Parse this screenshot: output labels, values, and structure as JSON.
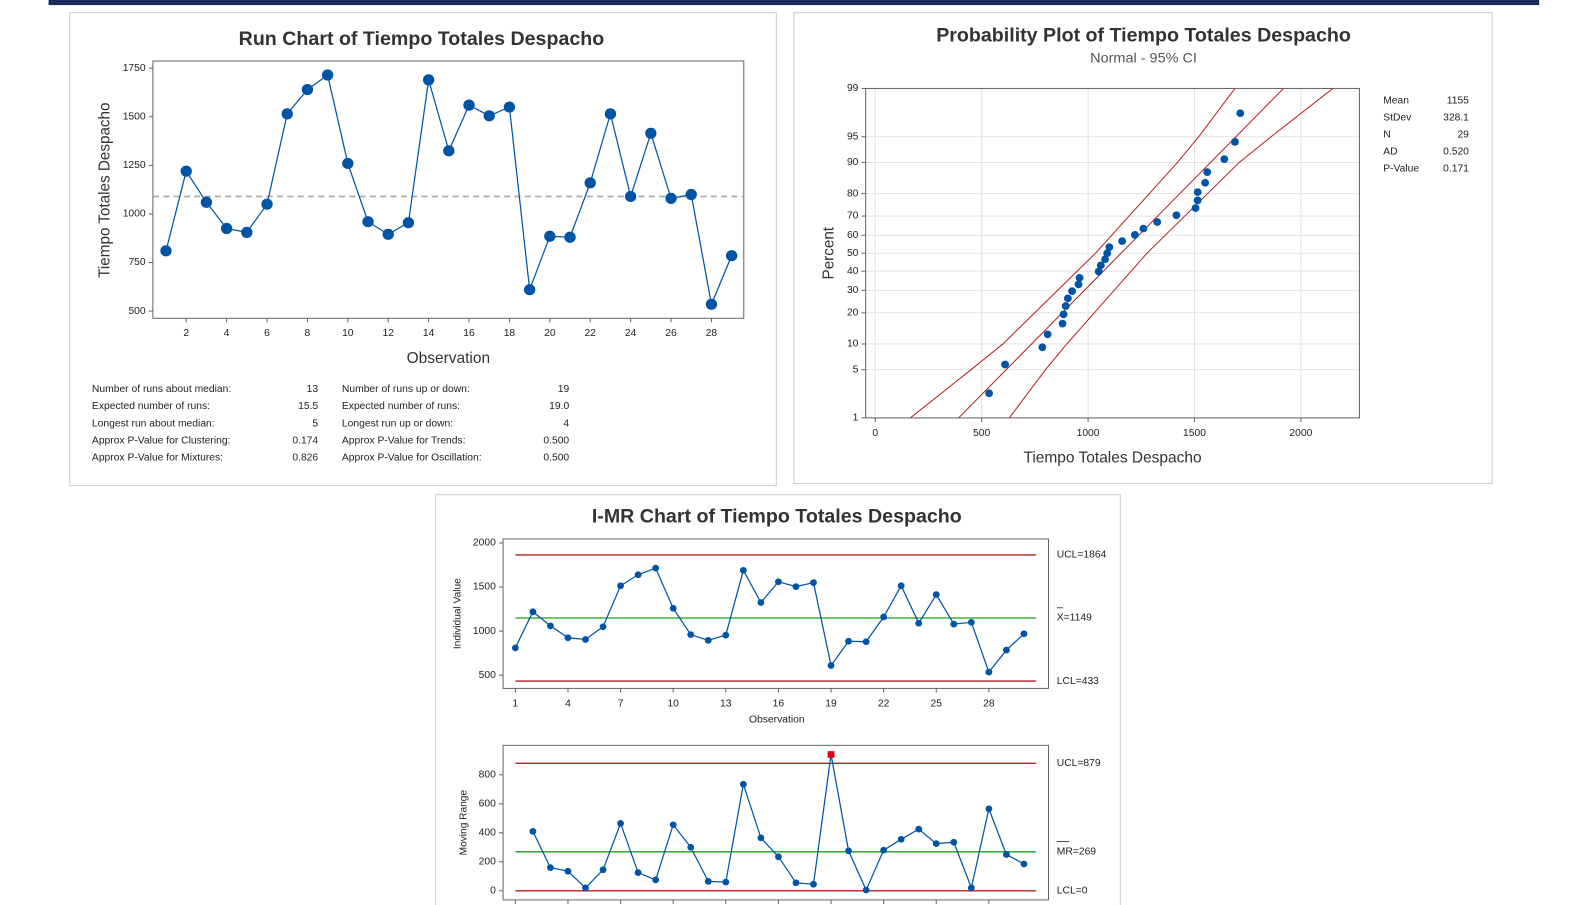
{
  "chart_data": [
    {
      "type": "run",
      "title": "Run Chart of Tiempo Totales Despacho",
      "x_label": "Observation",
      "y_label": "Tiempo Totales Despacho",
      "x": [
        1,
        2,
        3,
        4,
        5,
        6,
        7,
        8,
        9,
        10,
        11,
        12,
        13,
        14,
        15,
        16,
        17,
        18,
        19,
        20,
        21,
        22,
        23,
        24,
        25,
        26,
        27,
        28,
        29
      ],
      "values": [
        810,
        1220,
        1060,
        925,
        905,
        1050,
        1515,
        1640,
        1715,
        1260,
        960,
        895,
        955,
        1690,
        1325,
        1560,
        1505,
        1550,
        610,
        885,
        880,
        1160,
        1515,
        1090,
        1415,
        1080,
        1100,
        535,
        785
      ],
      "color": "#0054a6",
      "median": 1090,
      "xlim": [
        0.35,
        29.6
      ],
      "ylim": [
        463,
        1787
      ],
      "xticks": [
        2,
        4,
        6,
        8,
        10,
        12,
        14,
        16,
        18,
        20,
        22,
        24,
        26,
        28
      ],
      "yticks": [
        500,
        750,
        1000,
        1250,
        1500,
        1750
      ],
      "stats_left": [
        [
          "Number of runs about median:",
          "13"
        ],
        [
          "Expected number of runs:",
          "15.5"
        ],
        [
          "Longest run about median:",
          "5"
        ],
        [
          "Approx P-Value for Clustering:",
          "0.174"
        ],
        [
          "Approx P-Value for Mixtures:",
          "0.826"
        ]
      ],
      "stats_right": [
        [
          "Number of runs up or down:",
          "19"
        ],
        [
          "Expected number of runs:",
          "19.0"
        ],
        [
          "Longest run up or down:",
          "4"
        ],
        [
          "Approx P-Value for Trends:",
          "0.500"
        ],
        [
          "Approx P-Value for Oscillation:",
          "0.500"
        ]
      ]
    },
    {
      "type": "probability",
      "title": "Probability Plot of Tiempo Totales Despacho",
      "subtitle": "Normal - 95% CI",
      "x_label": "Tiempo Totales Despacho",
      "y_label": "Percent",
      "x": [
        535,
        610,
        785,
        810,
        880,
        885,
        895,
        905,
        925,
        955,
        960,
        1050,
        1060,
        1080,
        1090,
        1100,
        1160,
        1220,
        1260,
        1325,
        1415,
        1505,
        1515,
        1515,
        1550,
        1560,
        1640,
        1690,
        1715
      ],
      "values": [
        2.4,
        5.8,
        9.2,
        12.6,
        16.0,
        19.4,
        22.8,
        26.2,
        29.6,
        33.0,
        36.4,
        39.8,
        43.2,
        46.6,
        50.0,
        53.4,
        56.8,
        60.2,
        63.6,
        67.0,
        70.4,
        73.8,
        77.2,
        80.6,
        84.0,
        87.4,
        90.8,
        94.2,
        97.6
      ],
      "color": "#0054a6",
      "line_color": "#b22222",
      "grid": true,
      "ci": {
        "percents": [
          1,
          5,
          10,
          50,
          90,
          95,
          99
        ],
        "lower": [
          165,
          450,
          600,
          1035,
          1420,
          1520,
          1690
        ],
        "upper": [
          630,
          800,
          900,
          1277,
          1710,
          1860,
          2150
        ]
      },
      "xlim": [
        -45,
        2275
      ],
      "ylim": [
        1,
        99
      ],
      "xticks": [
        0,
        500,
        1000,
        1500,
        2000
      ],
      "yticks": [
        1,
        5,
        10,
        20,
        30,
        40,
        50,
        60,
        70,
        80,
        90,
        95,
        99
      ],
      "stats": [
        {
          "label": "Mean",
          "value": 1155
        },
        {
          "label": "StDev",
          "value": 328.1
        },
        {
          "label": "N",
          "value": 29
        },
        {
          "label": "AD",
          "value": "0.520"
        },
        {
          "label": "P-Value",
          "value": "0.171"
        }
      ]
    },
    {
      "type": "imr",
      "title": "I-MR Chart of Tiempo Totales Despacho",
      "x_label": "Observation",
      "x": [
        1,
        2,
        3,
        4,
        5,
        6,
        7,
        8,
        9,
        10,
        11,
        12,
        13,
        14,
        15,
        16,
        17,
        18,
        19,
        20,
        21,
        22,
        23,
        24,
        25,
        26,
        27,
        28,
        29,
        30
      ],
      "xlim": [
        0.3,
        31.4
      ],
      "xticks": [
        1,
        4,
        7,
        10,
        13,
        16,
        19,
        22,
        25,
        28
      ],
      "color": "#0054a6",
      "limit_color": "#b22222",
      "center_color": "#1e9e1e",
      "alarm_color": "#e3001b",
      "individual": {
        "y_label": "Individual Value",
        "values": [
          810,
          1220,
          1060,
          925,
          905,
          1050,
          1515,
          1640,
          1715,
          1260,
          960,
          895,
          955,
          1690,
          1325,
          1560,
          1505,
          1550,
          610,
          885,
          880,
          1160,
          1515,
          1090,
          1415,
          1080,
          1100,
          535,
          785,
          970
        ],
        "ylim": [
          350,
          2046
        ],
        "yticks": [
          500,
          1000,
          1500,
          2000
        ],
        "ucl": {
          "value": 1864,
          "label": "UCL=1864"
        },
        "center": {
          "value": 1149,
          "label": "X=1149"
        },
        "lcl": {
          "value": 433,
          "label": "LCL=433"
        }
      },
      "moving_range": {
        "y_label": "Moving Range",
        "values": [
          null,
          410,
          160,
          135,
          20,
          145,
          465,
          125,
          75,
          455,
          300,
          65,
          60,
          735,
          365,
          235,
          55,
          45,
          940,
          275,
          5,
          280,
          355,
          425,
          325,
          335,
          20,
          565,
          250,
          185
        ],
        "ylim": [
          -63,
          1003
        ],
        "yticks": [
          0,
          200,
          400,
          600,
          800
        ],
        "ucl": {
          "value": 879,
          "label": "UCL=879"
        },
        "center": {
          "value": 269,
          "label": "MR=269"
        },
        "lcl": {
          "value": 0,
          "label": "LCL=0"
        }
      }
    }
  ]
}
